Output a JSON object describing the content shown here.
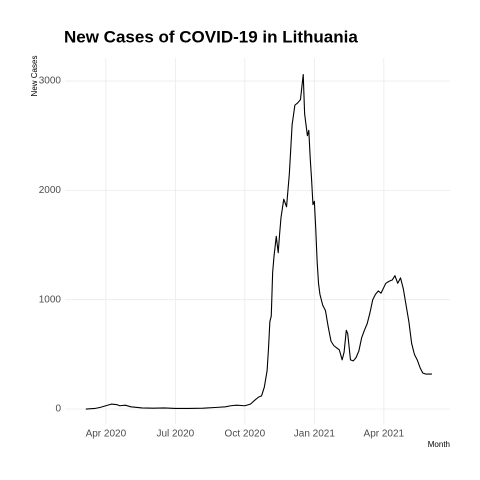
{
  "chart_data": {
    "type": "line",
    "title": "New Cases of COVID-19 in Lithuania",
    "ylabel": "New Cases",
    "xlabel": "Month",
    "color": "#000000",
    "grid": true,
    "xlim": [
      2020.103,
      2021.488
    ],
    "xticks": [
      {
        "value": 2020.25,
        "label": "Apr 2020"
      },
      {
        "value": 2020.5,
        "label": "Jul 2020"
      },
      {
        "value": 2020.75,
        "label": "Oct 2020"
      },
      {
        "value": 2021.0,
        "label": "Jan 2021"
      },
      {
        "value": 2021.25,
        "label": "Apr 2021"
      }
    ],
    "ylim": [
      -137,
      3211
    ],
    "yticks": [
      0,
      1000,
      2000,
      3000
    ],
    "x": [
      2020.178,
      2020.21,
      2020.23,
      2020.25,
      2020.27,
      2020.29,
      2020.3,
      2020.32,
      2020.34,
      2020.38,
      2020.42,
      2020.46,
      2020.5,
      2020.55,
      2020.6,
      2020.65,
      2020.68,
      2020.7,
      2020.72,
      2020.75,
      2020.77,
      2020.79,
      2020.8,
      2020.81,
      2020.82,
      2020.83,
      2020.835,
      2020.84,
      2020.845,
      2020.85,
      2020.855,
      2020.863,
      2020.87,
      2020.875,
      2020.88,
      2020.89,
      2020.9,
      2020.91,
      2020.92,
      2020.93,
      2020.94,
      2020.95,
      2020.96,
      2020.965,
      2020.975,
      2020.98,
      2020.985,
      2020.99,
      2020.995,
      2021.0,
      2021.005,
      2021.01,
      2021.015,
      2021.02,
      2021.03,
      2021.04,
      2021.05,
      2021.06,
      2021.07,
      2021.08,
      2021.09,
      2021.1,
      2021.107,
      2021.115,
      2021.12,
      2021.13,
      2021.14,
      2021.15,
      2021.16,
      2021.17,
      2021.18,
      2021.19,
      2021.2,
      2021.21,
      2021.22,
      2021.23,
      2021.24,
      2021.257,
      2021.27,
      2021.28,
      2021.29,
      2021.3,
      2021.31,
      2021.32,
      2021.33,
      2021.34,
      2021.345,
      2021.35,
      2021.36,
      2021.37,
      2021.38,
      2021.39,
      2021.4,
      2021.41,
      2021.423
    ],
    "values": [
      0,
      5,
      15,
      30,
      45,
      40,
      30,
      35,
      20,
      10,
      8,
      10,
      5,
      5,
      8,
      15,
      20,
      30,
      35,
      30,
      45,
      90,
      110,
      120,
      200,
      350,
      550,
      800,
      850,
      1250,
      1400,
      1580,
      1430,
      1600,
      1750,
      1920,
      1850,
      2150,
      2600,
      2780,
      2800,
      2830,
      3060,
      2700,
      2500,
      2550,
      2300,
      2100,
      1870,
      1900,
      1650,
      1350,
      1150,
      1050,
      950,
      900,
      750,
      620,
      580,
      560,
      540,
      450,
      520,
      720,
      690,
      450,
      440,
      470,
      530,
      650,
      720,
      780,
      880,
      1000,
      1050,
      1080,
      1060,
      1150,
      1170,
      1180,
      1220,
      1150,
      1200,
      1100,
      950,
      800,
      700,
      600,
      500,
      450,
      380,
      330,
      320,
      320,
      320
    ]
  }
}
